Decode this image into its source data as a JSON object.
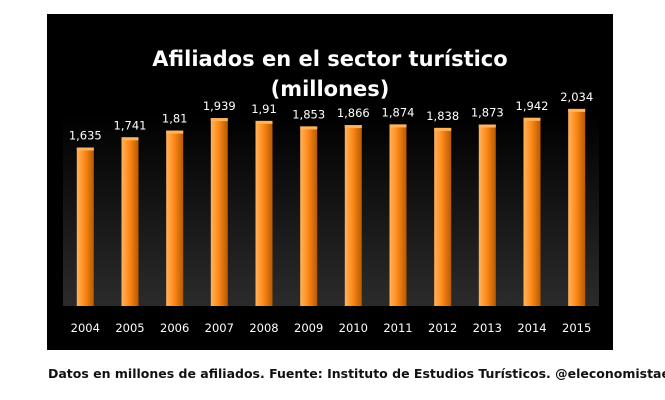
{
  "chart_data": {
    "type": "bar",
    "title": "Afiliados en el sector turístico",
    "subtitle": "(millones)",
    "categories": [
      "2004",
      "2005",
      "2006",
      "2007",
      "2008",
      "2009",
      "2010",
      "2011",
      "2012",
      "2013",
      "2014",
      "2015"
    ],
    "values": [
      1.635,
      1.741,
      1.81,
      1.939,
      1.91,
      1.853,
      1.866,
      1.874,
      1.838,
      1.873,
      1.942,
      2.034
    ],
    "value_labels": [
      "1,635",
      "1,741",
      "1,81",
      "1,939",
      "1,91",
      "1,853",
      "1,866",
      "1,874",
      "1,838",
      "1,873",
      "1,942",
      "2,034"
    ],
    "xlabel": "",
    "ylabel": "",
    "ylim": [
      0,
      2.6
    ],
    "grid": false,
    "legend": "none",
    "colors": {
      "background": "#000000",
      "plot_area": "#2b2b2b",
      "bar_light": "#ffb35c",
      "bar_mid": "#ff8a1a",
      "bar_dark": "#b85a00",
      "text": "#ffffff"
    }
  },
  "footer": {
    "caption": "Datos en millones de afiliados. Fuente: Instituto de Estudios Turísticos. @eleconomistaes"
  }
}
